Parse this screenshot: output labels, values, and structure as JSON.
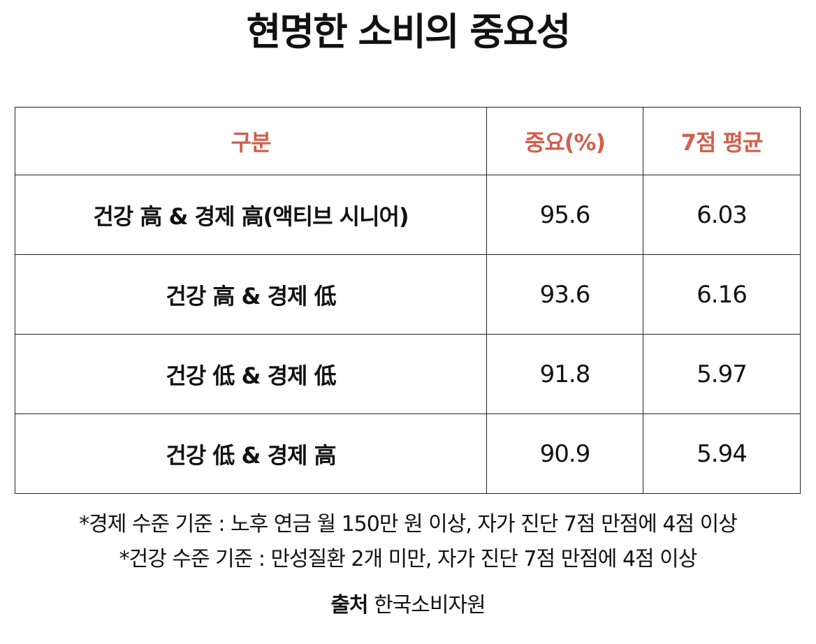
{
  "title": "현명한 소비의 중요성",
  "table": {
    "headers": [
      "구분",
      "중요(%)",
      "7점 평균"
    ],
    "rows": [
      {
        "category": "건강 高 & 경제 高(액티브 시니어)",
        "importance": "95.6",
        "avg": "6.03"
      },
      {
        "category": "건강 高 & 경제 低",
        "importance": "93.6",
        "avg": "6.16"
      },
      {
        "category": "건강 低 & 경제 低",
        "importance": "91.8",
        "avg": "5.97"
      },
      {
        "category": "건강 低 & 경제 高",
        "importance": "90.9",
        "avg": "5.94"
      }
    ]
  },
  "notes": [
    "*경제 수준 기준 : 노후 연금 월 150만 원 이상, 자가 진단 7점 만점에 4점 이상",
    "*건강 수준 기준 : 만성질환 2개 미만, 자가 진단 7점 만점에 4점 이상"
  ],
  "source": {
    "label": "출처",
    "value": "한국소비자원"
  },
  "colors": {
    "header_text": "#d0604d",
    "body_text": "#111111",
    "border": "#222222"
  }
}
